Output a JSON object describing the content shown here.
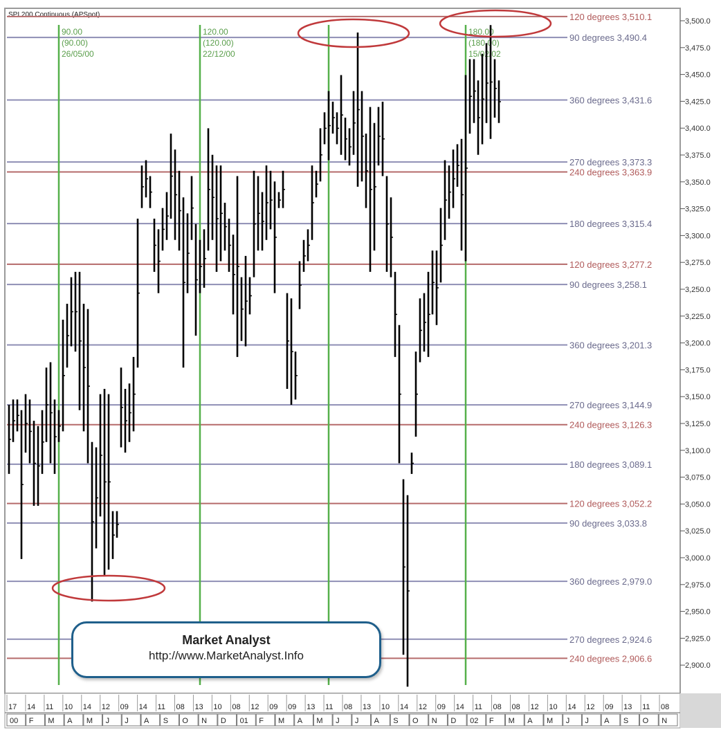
{
  "chart_title": "SPI 200 Continuous (APSpot)",
  "watermark": {
    "title": "Market Analyst",
    "url": "http://www.MarketAnalyst.Info"
  },
  "colors": {
    "blue_line": "#8e8eb4",
    "red_line": "#b56a6a",
    "green_line": "#55b04a",
    "bar": "#000000",
    "ellipse": "#c0393b",
    "blue_label": "#6a6a8c",
    "red_label": "#b05a5a"
  },
  "chart_data": {
    "type": "ohlc",
    "ylim": [
      2875,
      3510
    ],
    "y_ticks": [
      "3,500.0",
      "3,475.0",
      "3,450.0",
      "3,425.0",
      "3,400.0",
      "3,375.0",
      "3,350.0",
      "3,325.0",
      "3,300.0",
      "3,275.0",
      "3,250.0",
      "3,225.0",
      "3,200.0",
      "3,175.0",
      "3,150.0",
      "3,125.0",
      "3,100.0",
      "3,075.0",
      "3,050.0",
      "3,025.0",
      "3,000.0",
      "2,975.0",
      "2,950.0",
      "2,925.0",
      "2,900.0"
    ],
    "y_tick_values": [
      3500,
      3475,
      3450,
      3425,
      3400,
      3375,
      3350,
      3325,
      3300,
      3275,
      3250,
      3225,
      3200,
      3175,
      3150,
      3125,
      3100,
      3075,
      3050,
      3025,
      3000,
      2975,
      2950,
      2925,
      2900
    ],
    "gann_levels": [
      {
        "label": "120 degrees 3,510.1",
        "value": 3510.1,
        "color": "red"
      },
      {
        "label": "90 degrees 3,490.4",
        "value": 3490.4,
        "color": "blue"
      },
      {
        "label": "360 degrees 3,431.6",
        "value": 3431.6,
        "color": "blue"
      },
      {
        "label": "270 degrees 3,373.3",
        "value": 3373.3,
        "color": "blue"
      },
      {
        "label": "240 degrees 3,363.9",
        "value": 3363.9,
        "color": "red"
      },
      {
        "label": "180 degrees 3,315.4",
        "value": 3315.4,
        "color": "blue"
      },
      {
        "label": "120 degrees 3,277.2",
        "value": 3277.2,
        "color": "red"
      },
      {
        "label": "90 degrees 3,258.1",
        "value": 3258.1,
        "color": "blue"
      },
      {
        "label": "360 degrees 3,201.3",
        "value": 3201.3,
        "color": "blue"
      },
      {
        "label": "270 degrees 3,144.9",
        "value": 3144.9,
        "color": "blue"
      },
      {
        "label": "240 degrees 3,126.3",
        "value": 3126.3,
        "color": "red"
      },
      {
        "label": "180 degrees 3,089.1",
        "value": 3089.1,
        "color": "blue"
      },
      {
        "label": "120 degrees 3,052.2",
        "value": 3052.2,
        "color": "red"
      },
      {
        "label": "90 degrees 3,033.8",
        "value": 3033.8,
        "color": "blue"
      },
      {
        "label": "360 degrees 2,979.0",
        "value": 2979.0,
        "color": "blue"
      },
      {
        "label": "270 degrees 2,924.6",
        "value": 2924.6,
        "color": "blue"
      },
      {
        "label": "240 degrees 2,906.6",
        "value": 2906.6,
        "color": "red"
      }
    ],
    "time_cycles": [
      {
        "lines": [
          "90.00",
          "(90.00)",
          "26/05/00"
        ],
        "index": 12
      },
      {
        "lines": [
          "120.00",
          "(120.00)",
          "22/12/00"
        ],
        "index": 46
      },
      {
        "lines": [],
        "index": 77
      },
      {
        "lines": [
          "180.00",
          "(180.00)",
          "15/02/02"
        ],
        "index": 110
      }
    ],
    "day_labels": [
      "17",
      "14",
      "11",
      "10",
      "14",
      "12",
      "09",
      "14",
      "11",
      "08",
      "13",
      "10",
      "08",
      "12",
      "09",
      "09",
      "13",
      "11",
      "08",
      "13",
      "10",
      "14",
      "12",
      "09",
      "14",
      "11",
      "08",
      "08",
      "12",
      "10",
      "14",
      "12",
      "09",
      "13",
      "11",
      "08"
    ],
    "month_labels": [
      "00",
      "F",
      "M",
      "A",
      "M",
      "J",
      "J",
      "A",
      "S",
      "O",
      "N",
      "D",
      "01",
      "F",
      "M",
      "A",
      "M",
      "J",
      "J",
      "A",
      "S",
      "O",
      "N",
      "D",
      "02",
      "F",
      "M",
      "A",
      "M",
      "J",
      "J",
      "A",
      "S",
      "O",
      "N"
    ],
    "highlighted_extremes": [
      "low ~2,960 (Apr 2000)",
      "high ~3,495 (Jun 2001)",
      "high ~3,502 (Feb 2002)"
    ],
    "bars": [
      {
        "h": 3145,
        "l": 3080
      },
      {
        "h": 3150,
        "l": 3110
      },
      {
        "h": 3150,
        "l": 3120
      },
      {
        "h": 3140,
        "l": 3000
      },
      {
        "h": 3155,
        "l": 3100
      },
      {
        "h": 3150,
        "l": 3090
      },
      {
        "h": 3130,
        "l": 3050
      },
      {
        "h": 3125,
        "l": 3050
      },
      {
        "h": 3140,
        "l": 3080
      },
      {
        "h": 3180,
        "l": 3110
      },
      {
        "h": 3185,
        "l": 3090
      },
      {
        "h": 3150,
        "l": 3080
      },
      {
        "h": 3140,
        "l": 3110
      },
      {
        "h": 3225,
        "l": 3120
      },
      {
        "h": 3240,
        "l": 3180
      },
      {
        "h": 3265,
        "l": 3200
      },
      {
        "h": 3270,
        "l": 3195
      },
      {
        "h": 3270,
        "l": 3140
      },
      {
        "h": 3240,
        "l": 3120
      },
      {
        "h": 3235,
        "l": 3090
      },
      {
        "h": 3110,
        "l": 2960
      },
      {
        "h": 3105,
        "l": 3010
      },
      {
        "h": 3155,
        "l": 3040
      },
      {
        "h": 3160,
        "l": 2985
      },
      {
        "h": 3155,
        "l": 2990
      },
      {
        "h": 3045,
        "l": 3000
      },
      {
        "h": 3045,
        "l": 3020
      },
      {
        "h": 3180,
        "l": 3105
      },
      {
        "h": 3160,
        "l": 3100
      },
      {
        "h": 3165,
        "l": 3110
      },
      {
        "h": 3190,
        "l": 3120
      },
      {
        "h": 3320,
        "l": 3180
      },
      {
        "h": 3370,
        "l": 3330
      },
      {
        "h": 3375,
        "l": 3340
      },
      {
        "h": 3360,
        "l": 3330
      },
      {
        "h": 3320,
        "l": 3270
      },
      {
        "h": 3310,
        "l": 3250
      },
      {
        "h": 3330,
        "l": 3290
      },
      {
        "h": 3345,
        "l": 3300
      },
      {
        "h": 3400,
        "l": 3320
      },
      {
        "h": 3385,
        "l": 3300
      },
      {
        "h": 3365,
        "l": 3290
      },
      {
        "h": 3340,
        "l": 3180
      },
      {
        "h": 3325,
        "l": 3250
      },
      {
        "h": 3360,
        "l": 3300
      },
      {
        "h": 3315,
        "l": 3210
      },
      {
        "h": 3300,
        "l": 3250
      },
      {
        "h": 3310,
        "l": 3255
      },
      {
        "h": 3405,
        "l": 3290
      },
      {
        "h": 3380,
        "l": 3300
      },
      {
        "h": 3370,
        "l": 3270
      },
      {
        "h": 3370,
        "l": 3280
      },
      {
        "h": 3335,
        "l": 3290
      },
      {
        "h": 3320,
        "l": 3270
      },
      {
        "h": 3305,
        "l": 3230
      },
      {
        "h": 3360,
        "l": 3190
      },
      {
        "h": 3265,
        "l": 3205
      },
      {
        "h": 3285,
        "l": 3200
      },
      {
        "h": 3265,
        "l": 3230
      },
      {
        "h": 3365,
        "l": 3265
      },
      {
        "h": 3360,
        "l": 3290
      },
      {
        "h": 3345,
        "l": 3290
      },
      {
        "h": 3370,
        "l": 3300
      },
      {
        "h": 3365,
        "l": 3310
      },
      {
        "h": 3355,
        "l": 3250
      },
      {
        "h": 3345,
        "l": 3330
      },
      {
        "h": 3365,
        "l": 3330
      },
      {
        "h": 3250,
        "l": 3160
      },
      {
        "h": 3245,
        "l": 3145
      },
      {
        "h": 3195,
        "l": 3150
      },
      {
        "h": 3280,
        "l": 3235
      },
      {
        "h": 3300,
        "l": 3270
      },
      {
        "h": 3310,
        "l": 3280
      },
      {
        "h": 3370,
        "l": 3300
      },
      {
        "h": 3365,
        "l": 3340
      },
      {
        "h": 3405,
        "l": 3355
      },
      {
        "h": 3420,
        "l": 3390
      },
      {
        "h": 3440,
        "l": 3375
      },
      {
        "h": 3430,
        "l": 3400
      },
      {
        "h": 3420,
        "l": 3390
      },
      {
        "h": 3455,
        "l": 3380
      },
      {
        "h": 3415,
        "l": 3375
      },
      {
        "h": 3405,
        "l": 3370
      },
      {
        "h": 3440,
        "l": 3380
      },
      {
        "h": 3495,
        "l": 3350
      },
      {
        "h": 3440,
        "l": 3355
      },
      {
        "h": 3400,
        "l": 3330
      },
      {
        "h": 3425,
        "l": 3270
      },
      {
        "h": 3410,
        "l": 3290
      },
      {
        "h": 3425,
        "l": 3370
      },
      {
        "h": 3430,
        "l": 3360
      },
      {
        "h": 3360,
        "l": 3270
      },
      {
        "h": 3340,
        "l": 3265
      },
      {
        "h": 3270,
        "l": 3190
      },
      {
        "h": 3220,
        "l": 3090
      },
      {
        "h": 3075,
        "l": 2910
      },
      {
        "h": 3060,
        "l": 2880
      },
      {
        "h": 3100,
        "l": 3080
      },
      {
        "h": 3195,
        "l": 3115
      },
      {
        "h": 3245,
        "l": 3185
      },
      {
        "h": 3250,
        "l": 3195
      },
      {
        "h": 3270,
        "l": 3190
      },
      {
        "h": 3290,
        "l": 3230
      },
      {
        "h": 3290,
        "l": 3220
      },
      {
        "h": 3330,
        "l": 3260
      },
      {
        "h": 3375,
        "l": 3300
      },
      {
        "h": 3370,
        "l": 3320
      },
      {
        "h": 3385,
        "l": 3330
      },
      {
        "h": 3390,
        "l": 3350
      },
      {
        "h": 3395,
        "l": 3290
      },
      {
        "h": 3455,
        "l": 3280
      },
      {
        "h": 3470,
        "l": 3400
      },
      {
        "h": 3470,
        "l": 3410
      },
      {
        "h": 3450,
        "l": 3380
      },
      {
        "h": 3475,
        "l": 3390
      },
      {
        "h": 3485,
        "l": 3410
      },
      {
        "h": 3502,
        "l": 3395
      },
      {
        "h": 3470,
        "l": 3415
      },
      {
        "h": 3450,
        "l": 3410
      }
    ]
  }
}
